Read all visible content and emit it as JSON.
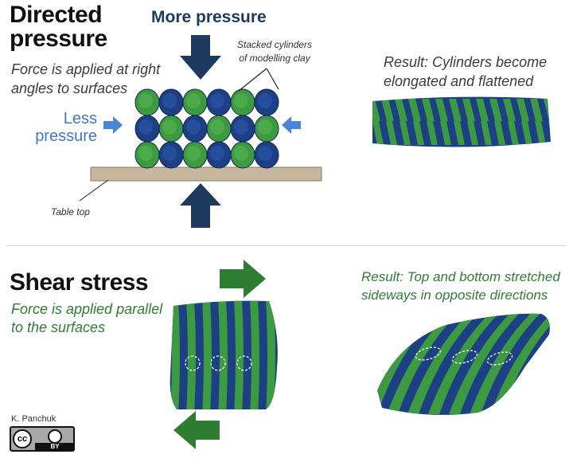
{
  "directed": {
    "title_line1": "Directed",
    "title_line2": "pressure",
    "subtitle_line1": "Force is applied at right",
    "subtitle_line2": "angles to surfaces",
    "more_pressure": "More pressure",
    "less_pressure_line1": "Less",
    "less_pressure_line2": "pressure",
    "stacked_line1": "Stacked cylinders",
    "stacked_line2": "of modelling clay",
    "table_top": "Table top",
    "result_line1": "Result: Cylinders become",
    "result_line2": "elongated and flattened"
  },
  "shear": {
    "title": "Shear stress",
    "subtitle_line1": "Force is applied parallel",
    "subtitle_line2": "to the surfaces",
    "result_line1": "Result: Top and bottom stretched",
    "result_line2": "sideways in opposite directions"
  },
  "credit": {
    "author": "K. Panchuk",
    "license_by": "BY"
  },
  "colors": {
    "navy_arrow": "#1f3a5f",
    "light_blue_arrow": "#4a86d8",
    "dark_green_arrow": "#2e7d32",
    "clay_blue": "#1d3f86",
    "clay_green": "#3c9a3f",
    "table": "#c8b79f"
  }
}
